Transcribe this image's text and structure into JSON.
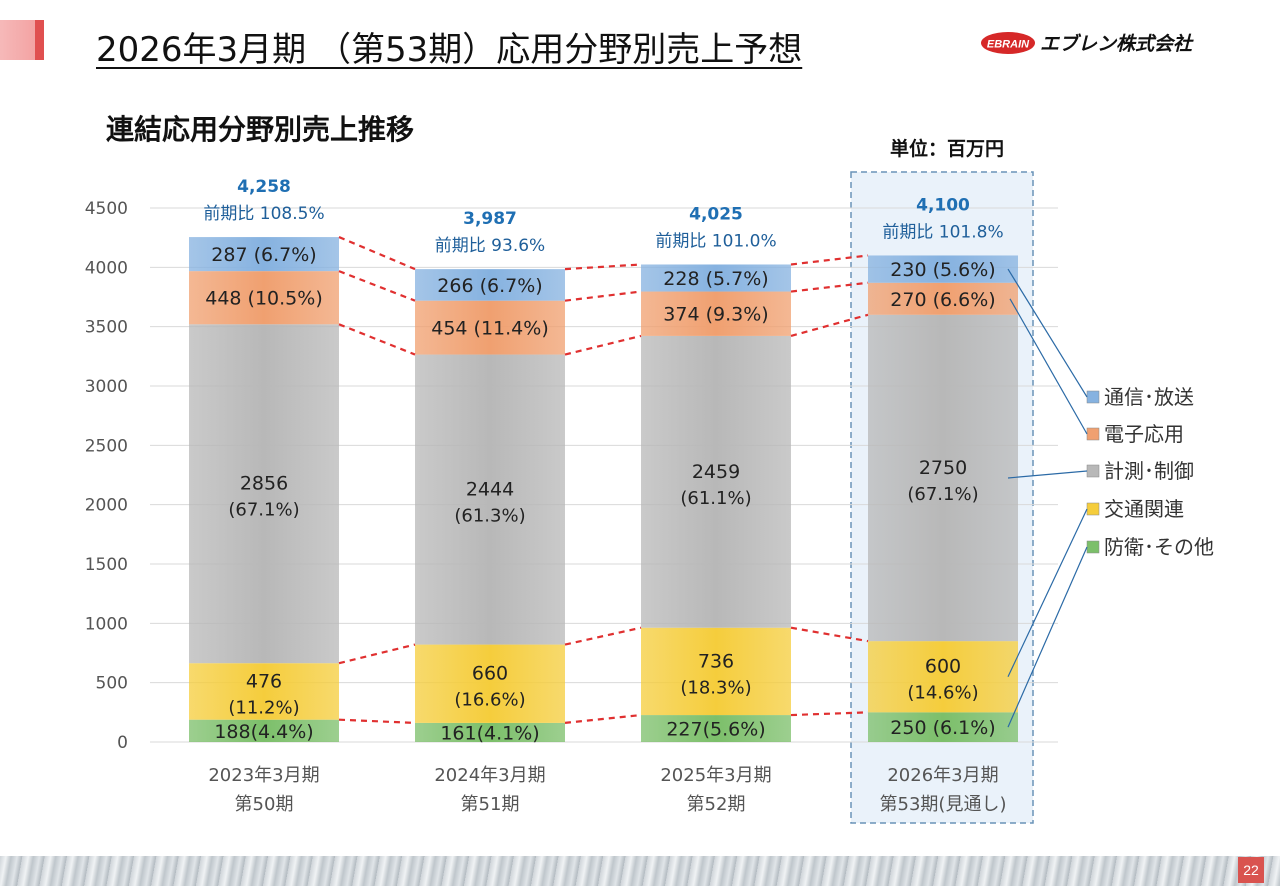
{
  "header": {
    "title": "2026年3月期 （第53期）応用分野別売上予想",
    "company": "エブレン株式会社",
    "logo_mark": "EBRAIN",
    "accent_color": "#e05050"
  },
  "subtitle": "連結応用分野別売上推移",
  "unit_label": "単位：百万円",
  "page_number": "22",
  "chart_data": {
    "type": "bar",
    "stacked": true,
    "ylim": [
      0,
      4500
    ],
    "yticks": [
      0,
      500,
      1000,
      1500,
      2000,
      2500,
      3000,
      3500,
      4000,
      4500
    ],
    "grid": true,
    "legend_position": "right",
    "categories": [
      [
        "2023年3月期",
        "第50期"
      ],
      [
        "2024年3月期",
        "第51期"
      ],
      [
        "2025年3月期",
        "第52期"
      ],
      [
        "2026年3月期",
        "第53期(見通し)"
      ]
    ],
    "highlight_index": 3,
    "totals": [
      {
        "value": "4,258",
        "yoy": "前期比 108.5%"
      },
      {
        "value": "3,987",
        "yoy": "前期比 93.6%"
      },
      {
        "value": "4,025",
        "yoy": "前期比 101.0%"
      },
      {
        "value": "4,100",
        "yoy": "前期比 101.8%"
      }
    ],
    "series": [
      {
        "name": "防衛･その他",
        "color": "#7cbf6a",
        "values": [
          188,
          161,
          227,
          250
        ],
        "labels": [
          "188(4.4%)",
          "161(4.1%)",
          "227(5.6%)",
          "250 (6.1%)"
        ]
      },
      {
        "name": "交通関連",
        "color": "#f5cd3c",
        "values": [
          476,
          660,
          736,
          600
        ],
        "labels": [
          [
            "476",
            "(11.2%)"
          ],
          [
            "660",
            "(16.6%)"
          ],
          [
            "736",
            "(18.3%)"
          ],
          [
            "600",
            "(14.6%)"
          ]
        ]
      },
      {
        "name": "計測･制御",
        "color": "#b8b8b8",
        "values": [
          2856,
          2444,
          2459,
          2750
        ],
        "labels": [
          [
            "2856",
            "(67.1%)"
          ],
          [
            "2444",
            "(61.3%)"
          ],
          [
            "2459",
            "(61.1%)"
          ],
          [
            "2750",
            "(67.1%)"
          ]
        ]
      },
      {
        "name": "電子応用",
        "color": "#f0a070",
        "values": [
          448,
          454,
          374,
          270
        ],
        "labels": [
          "448 (10.5%)",
          "454 (11.4%)",
          "374  (9.3%)",
          "270 (6.6%)"
        ]
      },
      {
        "name": "通信･放送",
        "color": "#86b2e0",
        "values": [
          287,
          266,
          228,
          230
        ],
        "labels": [
          "287 (6.7%)",
          "266 (6.7%)",
          "228 (5.7%)",
          "230 (5.6%)"
        ]
      }
    ],
    "legend_order": [
      "通信･放送",
      "電子応用",
      "計測･制御",
      "交通関連",
      "防衛･その他"
    ]
  }
}
